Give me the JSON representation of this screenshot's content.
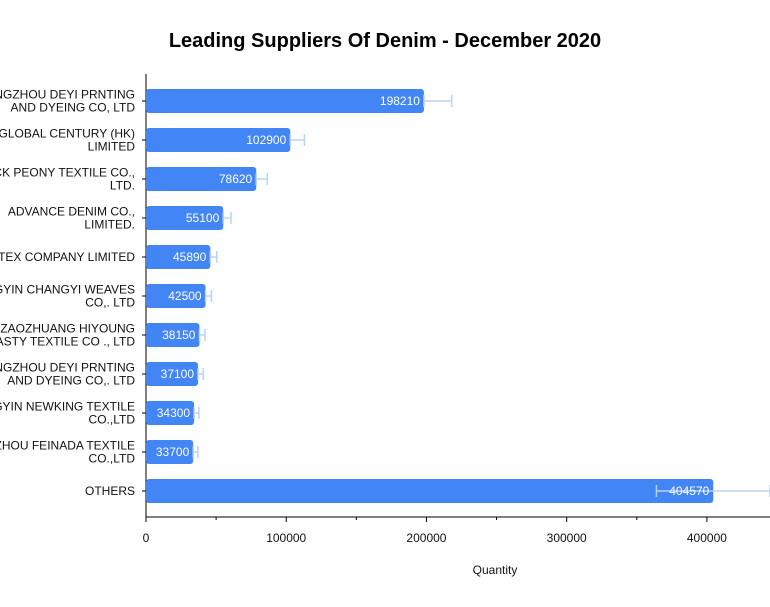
{
  "chart_data": {
    "type": "bar",
    "orientation": "horizontal",
    "title": "Leading Suppliers Of Denim - December 2020",
    "xlabel": "Quantity",
    "ylabel": "",
    "xlim": [
      0,
      445000
    ],
    "x_ticks": [
      "0",
      "100000",
      "200000",
      "300000",
      "400000"
    ],
    "categories": [
      [
        "CHANGZHOU DEYI PRNTING",
        "AND DYEING CO, LTD"
      ],
      [
        "GLOBAL CENTURY (HK)",
        "LIMITED"
      ],
      [
        "BLACK PEONY TEXTILE CO.,",
        "LTD."
      ],
      [
        "ADVANCE DENIM CO.,",
        "LIMITED."
      ],
      [
        "SOLTEX COMPANY LIMITED"
      ],
      [
        "JIANGYIN CHANGYI WEAVES",
        "CO,. LTD"
      ],
      [
        "ZAOZHUANG HIYOUNG",
        "DYNASTY TEXTILE CO ., LTD"
      ],
      [
        "CHANGZHOU DEYI PRNTING",
        "AND DYEING CO,. LTD"
      ],
      [
        "JIANGYIN NEWKING TEXTILE",
        "CO.,LTD"
      ],
      [
        "CHANGZHOU FEINADA TEXTILE",
        "CO.,LTD"
      ],
      [
        "OTHERS"
      ]
    ],
    "values": [
      198210,
      102900,
      78620,
      55100,
      45890,
      42500,
      38150,
      37100,
      34300,
      33700,
      404570
    ],
    "data_labels": [
      "198210",
      "102900",
      "78620",
      "55100",
      "45890",
      "42500",
      "38150",
      "37100",
      "34300",
      "33700",
      "404570"
    ],
    "error_bars": [
      [
        198210,
        218000
      ],
      [
        102900,
        113000
      ],
      [
        78620,
        86500
      ],
      [
        55100,
        60600
      ],
      [
        45890,
        50500
      ],
      [
        42500,
        46700
      ],
      [
        38150,
        42000
      ],
      [
        37100,
        40800
      ],
      [
        34300,
        37700
      ],
      [
        33700,
        37000
      ],
      [
        364000,
        445000
      ]
    ],
    "colors": {
      "bar": "#4285f4",
      "error_bar": "#b9d2f7",
      "axis": "#000000"
    },
    "grid": false,
    "legend": "none"
  }
}
